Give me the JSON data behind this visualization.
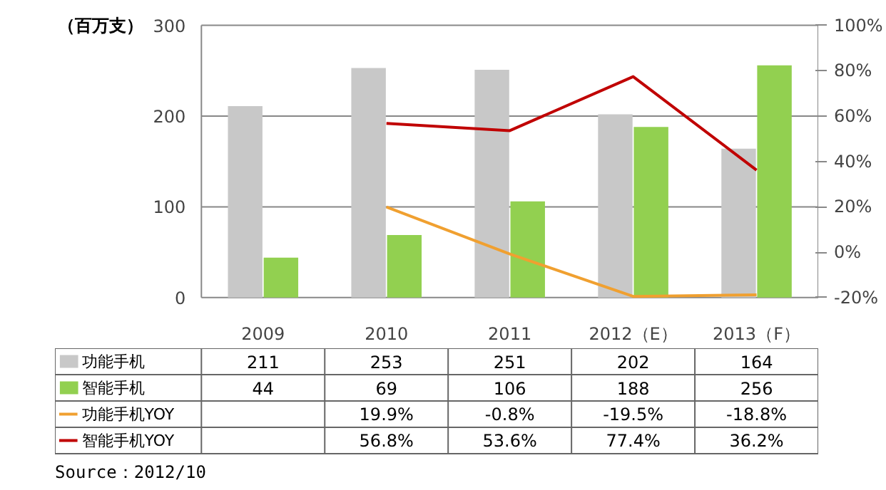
{
  "chart_data": {
    "type": "bar",
    "categories": [
      "2009",
      "2010",
      "2011",
      "2012（E）",
      "2013（F）"
    ],
    "ylabel": "（百万支）",
    "ylim": [
      0,
      300
    ],
    "yticks": [
      0,
      100,
      200,
      300
    ],
    "y2lim": [
      -20,
      100
    ],
    "y2ticks": [
      {
        "value": -20,
        "label": "-20%"
      },
      {
        "value": 0,
        "label": "0%"
      },
      {
        "value": 20,
        "label": "20%"
      },
      {
        "value": 40,
        "label": "40%"
      },
      {
        "value": 60,
        "label": "60%"
      },
      {
        "value": 80,
        "label": "80%"
      },
      {
        "value": 100,
        "label": "100%"
      }
    ],
    "grid": "y",
    "legend": "bottom",
    "series": [
      {
        "name": "功能手机",
        "color": "#c8c8c8",
        "values": [
          211,
          253,
          251,
          202,
          164
        ],
        "value_labels": [
          "211",
          "253",
          "251",
          "202",
          "164"
        ]
      },
      {
        "name": "智能手机",
        "color": "#92d050",
        "values": [
          44,
          69,
          106,
          188,
          256
        ],
        "value_labels": [
          "44",
          "69",
          "106",
          "188",
          "256"
        ]
      },
      {
        "name": "功能手机YOY",
        "type": "line",
        "axis": "y2",
        "color": "#f0a030",
        "values": [
          null,
          19.9,
          -0.8,
          -19.5,
          -18.8
        ],
        "value_labels": [
          null,
          "19.9%",
          "-0.8%",
          "-19.5%",
          "-18.8%"
        ]
      },
      {
        "name": "智能手机YOY",
        "type": "line",
        "axis": "y2",
        "color": "#c00000",
        "values": [
          null,
          56.8,
          53.6,
          77.4,
          36.2
        ],
        "value_labels": [
          null,
          "56.8%",
          "53.6%",
          "77.4%",
          "36.2%"
        ]
      }
    ],
    "annotations": [
      "Source：2012/10"
    ]
  }
}
